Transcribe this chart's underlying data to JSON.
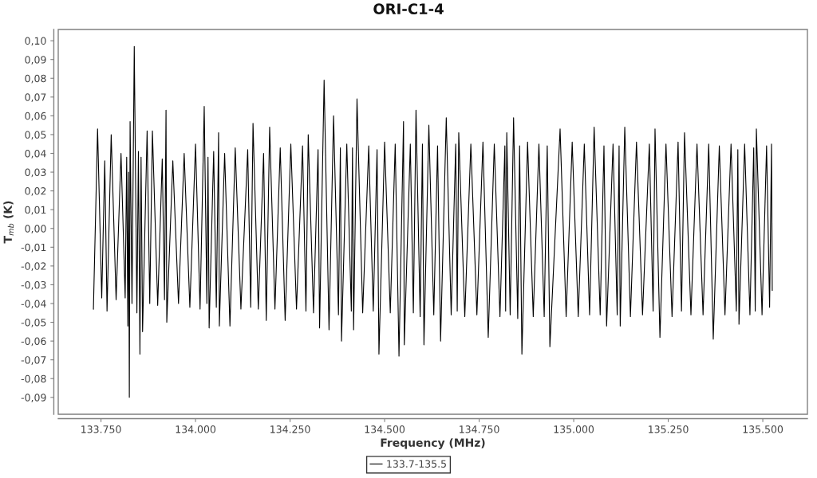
{
  "chart_data": {
    "type": "line",
    "title": "ORI-C1-4",
    "xlabel": "Frequency (MHz)",
    "ylabel": "T$_{mb}$ (K)",
    "xlim": [
      133637,
      135618
    ],
    "ylim": [
      -0.099,
      0.106
    ],
    "xticks": [
      {
        "value": 133750,
        "label": "133.750"
      },
      {
        "value": 134000,
        "label": "134.000"
      },
      {
        "value": 134250,
        "label": "134.250"
      },
      {
        "value": 134500,
        "label": "134.500"
      },
      {
        "value": 134750,
        "label": "134.750"
      },
      {
        "value": 135000,
        "label": "135.000"
      },
      {
        "value": 135250,
        "label": "135.250"
      },
      {
        "value": 135500,
        "label": "135.500"
      }
    ],
    "yticks": [
      {
        "value": -0.09,
        "label": "-0,09"
      },
      {
        "value": -0.08,
        "label": "-0,08"
      },
      {
        "value": -0.07,
        "label": "-0,07"
      },
      {
        "value": -0.06,
        "label": "-0,06"
      },
      {
        "value": -0.05,
        "label": "-0,05"
      },
      {
        "value": -0.04,
        "label": "-0,04"
      },
      {
        "value": -0.03,
        "label": "-0,03"
      },
      {
        "value": -0.02,
        "label": "-0,02"
      },
      {
        "value": -0.01,
        "label": "-0,01"
      },
      {
        "value": 0.0,
        "label": "0,00"
      },
      {
        "value": 0.01,
        "label": "0,01"
      },
      {
        "value": 0.02,
        "label": "0,02"
      },
      {
        "value": 0.03,
        "label": "0,03"
      },
      {
        "value": 0.04,
        "label": "0,04"
      },
      {
        "value": 0.05,
        "label": "0,05"
      },
      {
        "value": 0.06,
        "label": "0,06"
      },
      {
        "value": 0.07,
        "label": "0,07"
      },
      {
        "value": 0.08,
        "label": "0,08"
      },
      {
        "value": 0.09,
        "label": "0,09"
      },
      {
        "value": 0.1,
        "label": "0,10"
      }
    ],
    "legend": "bottom",
    "grid": false,
    "line_style": "solid",
    "series": [
      {
        "name": "133.7-135.5",
        "color": "#000000",
        "x": [
          133730,
          133741,
          133752,
          133760,
          133766,
          133777,
          133790,
          133803,
          133814,
          133818,
          133821,
          133823,
          133825,
          133827,
          133832,
          133838,
          133845,
          133849,
          133853,
          133856,
          133860,
          133872,
          133879,
          133886,
          133900,
          133912,
          133918,
          133922,
          133924,
          133940,
          133955,
          133970,
          133985,
          134000,
          134012,
          134023,
          134030,
          134033,
          134036,
          134048,
          134055,
          134061,
          134063,
          134077,
          134091,
          134105,
          134120,
          134138,
          134146,
          134152,
          134166,
          134180,
          134187,
          134196,
          134210,
          134224,
          134237,
          134252,
          134267,
          134283,
          134292,
          134298,
          134312,
          134324,
          134328,
          134340,
          134353,
          134365,
          134378,
          134383,
          134386,
          134400,
          134412,
          134415,
          134418,
          134427,
          134442,
          134458,
          134470,
          134480,
          134485,
          134500,
          134515,
          134528,
          134538,
          134550,
          134552,
          134568,
          134576,
          134583,
          134594,
          134600,
          134604,
          134617,
          134630,
          134640,
          134648,
          134663,
          134676,
          134688,
          134692,
          134696,
          134712,
          134728,
          134744,
          134760,
          134774,
          134790,
          134805,
          134818,
          134820,
          134823,
          134832,
          134841,
          134852,
          134857,
          134863,
          134878,
          134893,
          134908,
          134922,
          134930,
          134937,
          134964,
          134980,
          134996,
          135012,
          135028,
          135042,
          135054,
          135070,
          135080,
          135087,
          135104,
          135115,
          135120,
          135123,
          135135,
          135150,
          135166,
          135182,
          135200,
          135210,
          135215,
          135228,
          135244,
          135260,
          135276,
          135285,
          135293,
          135310,
          135326,
          135342,
          135357,
          135369,
          135385,
          135400,
          135416,
          135430,
          135434,
          135437,
          135452,
          135466,
          135476,
          135480,
          135483,
          135498,
          135510,
          135518,
          135523,
          135525
        ],
        "values": [
          -0.043,
          0.053,
          -0.037,
          0.036,
          -0.044,
          0.05,
          -0.038,
          0.04,
          -0.037,
          0.038,
          -0.052,
          0.03,
          -0.09,
          0.057,
          -0.04,
          0.097,
          -0.045,
          0.041,
          -0.067,
          0.038,
          -0.055,
          0.052,
          -0.04,
          0.052,
          -0.041,
          0.037,
          -0.038,
          0.063,
          -0.05,
          0.036,
          -0.04,
          0.04,
          -0.042,
          0.045,
          -0.043,
          0.065,
          -0.04,
          0.038,
          -0.053,
          0.041,
          -0.042,
          0.051,
          -0.052,
          0.04,
          -0.052,
          0.043,
          -0.043,
          0.042,
          -0.042,
          0.056,
          -0.043,
          0.04,
          -0.049,
          0.054,
          -0.043,
          0.043,
          -0.049,
          0.045,
          -0.043,
          0.044,
          -0.044,
          0.05,
          -0.045,
          0.042,
          -0.053,
          0.079,
          -0.054,
          0.06,
          -0.046,
          0.043,
          -0.06,
          0.045,
          -0.044,
          0.043,
          -0.054,
          0.069,
          -0.045,
          0.044,
          -0.044,
          0.042,
          -0.067,
          0.046,
          -0.045,
          0.045,
          -0.068,
          0.057,
          -0.062,
          0.045,
          -0.045,
          0.063,
          -0.047,
          0.045,
          -0.062,
          0.055,
          -0.046,
          0.044,
          -0.06,
          0.059,
          -0.046,
          0.045,
          -0.044,
          0.051,
          -0.047,
          0.045,
          -0.046,
          0.046,
          -0.058,
          0.045,
          -0.047,
          0.044,
          -0.044,
          0.051,
          -0.046,
          0.059,
          -0.048,
          0.044,
          -0.067,
          0.046,
          -0.047,
          0.045,
          -0.047,
          0.044,
          -0.063,
          0.053,
          -0.047,
          0.046,
          -0.047,
          0.045,
          -0.046,
          0.054,
          -0.046,
          0.044,
          -0.052,
          0.045,
          -0.046,
          0.044,
          -0.052,
          0.054,
          -0.047,
          0.046,
          -0.046,
          0.045,
          -0.044,
          0.053,
          -0.058,
          0.045,
          -0.047,
          0.046,
          -0.044,
          0.051,
          -0.046,
          0.045,
          -0.046,
          0.045,
          -0.059,
          0.044,
          -0.046,
          0.045,
          -0.044,
          0.042,
          -0.051,
          0.045,
          -0.046,
          0.043,
          -0.044,
          0.053,
          -0.046,
          0.044,
          -0.042,
          0.045,
          -0.033
        ]
      }
    ]
  }
}
